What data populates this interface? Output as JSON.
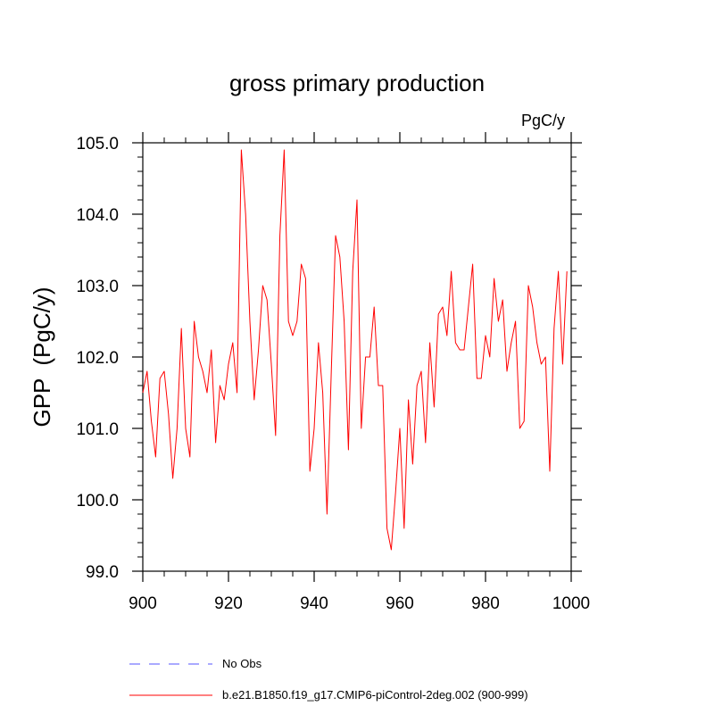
{
  "chart_data": {
    "type": "line",
    "title": "gross primary production",
    "units_label": "PgC/y",
    "ylabel": "GPP  (PgC/y)",
    "xlabel": "",
    "xlim": [
      900,
      1000
    ],
    "ylim": [
      99.0,
      105.0
    ],
    "x_ticks": [
      900,
      920,
      940,
      960,
      980,
      1000
    ],
    "x_tick_labels": [
      "900",
      "920",
      "940",
      "960",
      "980",
      "1000"
    ],
    "y_ticks": [
      99.0,
      100.0,
      101.0,
      102.0,
      103.0,
      104.0,
      105.0
    ],
    "y_tick_labels": [
      "99.0",
      "100.0",
      "101.0",
      "102.0",
      "103.0",
      "104.0",
      "105.0"
    ],
    "series": [
      {
        "name": "b.e21.B1850.f19_g17.CMIP6-piControl-2deg.002 (900-999)",
        "color": "#ff0000",
        "dash": "solid",
        "x_start": 900,
        "values": [
          101.5,
          101.8,
          101.1,
          100.6,
          101.7,
          101.8,
          101.2,
          100.3,
          101.0,
          102.4,
          101.0,
          100.6,
          102.5,
          102.0,
          101.8,
          101.5,
          102.1,
          100.8,
          101.6,
          101.4,
          101.9,
          102.2,
          101.5,
          104.9,
          104.0,
          102.5,
          101.4,
          102.1,
          103.0,
          102.8,
          101.9,
          100.9,
          103.7,
          104.9,
          102.5,
          102.3,
          102.5,
          103.3,
          103.1,
          100.4,
          101.0,
          102.2,
          101.5,
          99.8,
          101.8,
          103.7,
          103.4,
          102.5,
          100.7,
          103.2,
          104.2,
          101.0,
          102.0,
          102.0,
          102.7,
          101.6,
          101.6,
          99.6,
          99.3,
          100.1,
          101.0,
          99.6,
          101.4,
          100.5,
          101.6,
          101.8,
          100.8,
          102.2,
          101.3,
          102.6,
          102.7,
          102.3,
          103.2,
          102.2,
          102.1,
          102.1,
          102.7,
          103.3,
          101.7,
          101.7,
          102.3,
          102.0,
          103.1,
          102.5,
          102.8,
          101.8,
          102.2,
          102.5,
          101.0,
          101.1,
          103.0,
          102.7,
          102.2,
          101.9,
          102.0,
          100.4,
          102.4,
          103.2,
          101.9,
          103.2
        ]
      }
    ],
    "legend": [
      {
        "label": "No Obs",
        "color": "#5555ff",
        "dash": "dashed"
      },
      {
        "label": "b.e21.B1850.f19_g17.CMIP6-piControl-2deg.002 (900-999)",
        "color": "#ff0000",
        "dash": "solid"
      }
    ]
  }
}
